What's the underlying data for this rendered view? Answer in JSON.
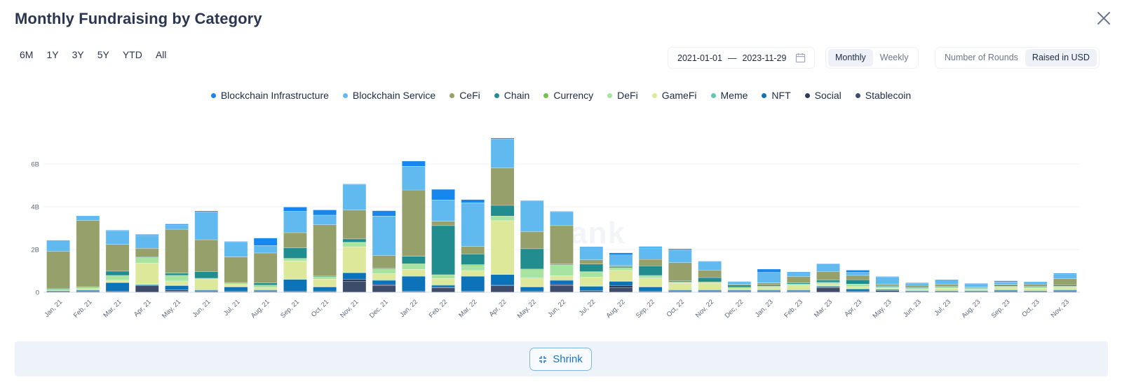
{
  "header": {
    "title": "Monthly Fundraising by Category",
    "close_icon": "close-icon"
  },
  "ranges": [
    "6M",
    "1Y",
    "3Y",
    "5Y",
    "YTD",
    "All"
  ],
  "date_range": {
    "start": "2021-01-01",
    "separator": "—",
    "end": "2023-11-29",
    "icon": "calendar-icon"
  },
  "interval_toggle": {
    "options": [
      "Monthly",
      "Weekly"
    ],
    "active": "Monthly"
  },
  "metric_toggle": {
    "options": [
      "Number of Rounds",
      "Raised in USD"
    ],
    "active": "Raised in USD"
  },
  "watermark": "rank",
  "footer": {
    "shrink_label": "Shrink",
    "shrink_icon": "shrink-icon"
  },
  "chart_data": {
    "type": "bar",
    "stacked": true,
    "title": "",
    "xlabel": "",
    "ylabel": "",
    "ylim": [
      0,
      7.5
    ],
    "yticks": [
      0,
      2,
      4,
      6
    ],
    "ytick_labels": [
      "0",
      "2B",
      "4B",
      "6B"
    ],
    "unit": "B USD",
    "grid": true,
    "legend_position": "top-center",
    "categories": [
      "Jan, 21",
      "Feb, 21",
      "Mar, 21",
      "Apr, 21",
      "May, 21",
      "Jun, 21",
      "Jul, 21",
      "Aug, 21",
      "Sep, 21",
      "Oct, 21",
      "Nov, 21",
      "Dec, 21",
      "Jan, 22",
      "Feb, 22",
      "Mar, 22",
      "Apr, 22",
      "May, 22",
      "Jun, 22",
      "Jul, 22",
      "Aug, 22",
      "Sep, 22",
      "Oct, 22",
      "Nov, 22",
      "Dec, 22",
      "Jan, 23",
      "Feb, 23",
      "Mar, 23",
      "Apr, 23",
      "May, 23",
      "Jun, 23",
      "Jul, 23",
      "Aug, 23",
      "Sep, 23",
      "Oct, 23",
      "Nov, 23"
    ],
    "x_label_every": 1,
    "series": [
      {
        "name": "Stablecoin",
        "color": "#3d4c6b",
        "values": [
          0.02,
          0.02,
          0.02,
          0.3,
          0.05,
          0.02,
          0.02,
          0.02,
          0.02,
          0.02,
          0.5,
          0.3,
          0.02,
          0.2,
          0.02,
          0.3,
          0.02,
          0.3,
          0.05,
          0.2,
          0.02,
          0.02,
          0.02,
          0.02,
          0.02,
          0.02,
          0.2,
          0.02,
          0.02,
          0.02,
          0.02,
          0.02,
          0.02,
          0.02,
          0.02
        ]
      },
      {
        "name": "Social",
        "color": "#2c3a5a",
        "values": [
          0.02,
          0.02,
          0.02,
          0.02,
          0.05,
          0.02,
          0.02,
          0.02,
          0.02,
          0.02,
          0.1,
          0.05,
          0.02,
          0.02,
          0.02,
          0.02,
          0.02,
          0.05,
          0.02,
          0.1,
          0.02,
          0.02,
          0.02,
          0.02,
          0.02,
          0.02,
          0.02,
          0.02,
          0.05,
          0.02,
          0.02,
          0.02,
          0.02,
          0.02,
          0.02
        ]
      },
      {
        "name": "NFT",
        "color": "#0c73b8",
        "values": [
          0.02,
          0.05,
          0.4,
          0.02,
          0.2,
          0.05,
          0.2,
          0.05,
          0.55,
          0.2,
          0.3,
          0.2,
          0.7,
          0.1,
          0.7,
          0.5,
          0.2,
          0.2,
          0.2,
          0.2,
          0.2,
          0.05,
          0.05,
          0.05,
          0.05,
          0.05,
          0.05,
          0.1,
          0.05,
          0.02,
          0.02,
          0.02,
          0.05,
          0.02,
          0.05
        ]
      },
      {
        "name": "Meme",
        "color": "#5ec8b0",
        "values": [
          0.02,
          0.02,
          0.02,
          0.02,
          0.02,
          0.02,
          0.02,
          0.02,
          0.02,
          0.02,
          0.02,
          0.02,
          0.02,
          0.02,
          0.02,
          0.02,
          0.02,
          0.02,
          0.02,
          0.02,
          0.02,
          0.02,
          0.02,
          0.02,
          0.02,
          0.02,
          0.02,
          0.02,
          0.02,
          0.02,
          0.02,
          0.02,
          0.02,
          0.02,
          0.02
        ]
      },
      {
        "name": "GameFi",
        "color": "#dde89b",
        "values": [
          0.02,
          0.05,
          0.1,
          1.0,
          0.2,
          0.5,
          0.1,
          0.1,
          0.85,
          0.35,
          1.2,
          0.3,
          0.3,
          0.3,
          0.25,
          2.5,
          0.4,
          0.2,
          0.4,
          0.5,
          0.4,
          0.3,
          0.3,
          0.05,
          0.1,
          0.2,
          0.1,
          0.1,
          0.05,
          0.05,
          0.1,
          0.05,
          0.1,
          0.1,
          0.1
        ]
      },
      {
        "name": "DeFi",
        "color": "#a7e3a1",
        "values": [
          0.02,
          0.05,
          0.2,
          0.25,
          0.25,
          0.02,
          0.05,
          0.1,
          0.1,
          0.1,
          0.2,
          0.2,
          0.25,
          0.15,
          0.25,
          0.2,
          0.4,
          0.5,
          0.25,
          0.1,
          0.1,
          0.05,
          0.05,
          0.05,
          0.05,
          0.05,
          0.05,
          0.1,
          0.05,
          0.05,
          0.05,
          0.05,
          0.05,
          0.05,
          0.05
        ]
      },
      {
        "name": "Currency",
        "color": "#6fc24a",
        "values": [
          0.02,
          0.02,
          0.02,
          0.02,
          0.02,
          0.02,
          0.02,
          0.02,
          0.02,
          0.02,
          0.02,
          0.02,
          0.02,
          0.02,
          0.02,
          0.02,
          0.02,
          0.02,
          0.02,
          0.02,
          0.02,
          0.02,
          0.02,
          0.02,
          0.02,
          0.02,
          0.02,
          0.02,
          0.02,
          0.02,
          0.02,
          0.02,
          0.02,
          0.02,
          0.02
        ]
      },
      {
        "name": "Chain",
        "color": "#218d8f",
        "values": [
          0.02,
          0.02,
          0.2,
          0.02,
          0.1,
          0.3,
          0.02,
          0.1,
          0.5,
          0.02,
          0.15,
          0.02,
          0.35,
          2.3,
          0.5,
          0.5,
          0.95,
          0.02,
          0.35,
          0.05,
          0.45,
          0.05,
          0.2,
          0.1,
          0.05,
          0.05,
          0.1,
          0.2,
          0.05,
          0.02,
          0.02,
          0.02,
          0.05,
          0.02,
          0.05
        ]
      },
      {
        "name": "CeFi",
        "color": "#96a06b",
        "values": [
          1.75,
          3.1,
          1.25,
          0.4,
          2.05,
          1.5,
          1.2,
          1.4,
          0.7,
          2.4,
          1.35,
          0.6,
          3.1,
          0.2,
          0.35,
          1.75,
          0.8,
          1.8,
          0.2,
          0.05,
          0.3,
          0.85,
          0.35,
          0.05,
          0.1,
          0.3,
          0.4,
          0.2,
          0.05,
          0.1,
          0.1,
          0.02,
          0.05,
          0.1,
          0.3
        ]
      },
      {
        "name": "Blockchain Service",
        "color": "#60b9ef",
        "values": [
          0.5,
          0.2,
          0.65,
          0.6,
          0.2,
          1.3,
          0.7,
          0.35,
          1.0,
          0.45,
          1.2,
          1.85,
          1.1,
          1.0,
          2.05,
          1.35,
          1.4,
          0.65,
          0.6,
          0.5,
          0.55,
          0.6,
          0.4,
          0.1,
          0.5,
          0.2,
          0.35,
          0.15,
          0.35,
          0.1,
          0.2,
          0.15,
          0.1,
          0.1,
          0.2
        ]
      },
      {
        "name": "Blockchain Infrastructure",
        "color": "#1587ee",
        "values": [
          0.02,
          0.02,
          0.02,
          0.05,
          0.05,
          0.05,
          0.02,
          0.35,
          0.2,
          0.25,
          0.02,
          0.25,
          0.25,
          0.5,
          0.15,
          0.05,
          0.05,
          0.02,
          0.02,
          0.1,
          0.05,
          0.05,
          0.02,
          0.02,
          0.15,
          0.02,
          0.02,
          0.1,
          0.02,
          0.02,
          0.02,
          0.02,
          0.05,
          0.02,
          0.05
        ]
      }
    ],
    "legend": [
      "Blockchain Infrastructure",
      "Blockchain Service",
      "CeFi",
      "Chain",
      "Currency",
      "DeFi",
      "GameFi",
      "Meme",
      "NFT",
      "Social",
      "Stablecoin"
    ],
    "legend_colors": [
      "#1587ee",
      "#60b9ef",
      "#96a06b",
      "#218d8f",
      "#6fc24a",
      "#a7e3a1",
      "#dde89b",
      "#5ec8b0",
      "#0c73b8",
      "#2c3a5a",
      "#3d4c6b"
    ]
  }
}
